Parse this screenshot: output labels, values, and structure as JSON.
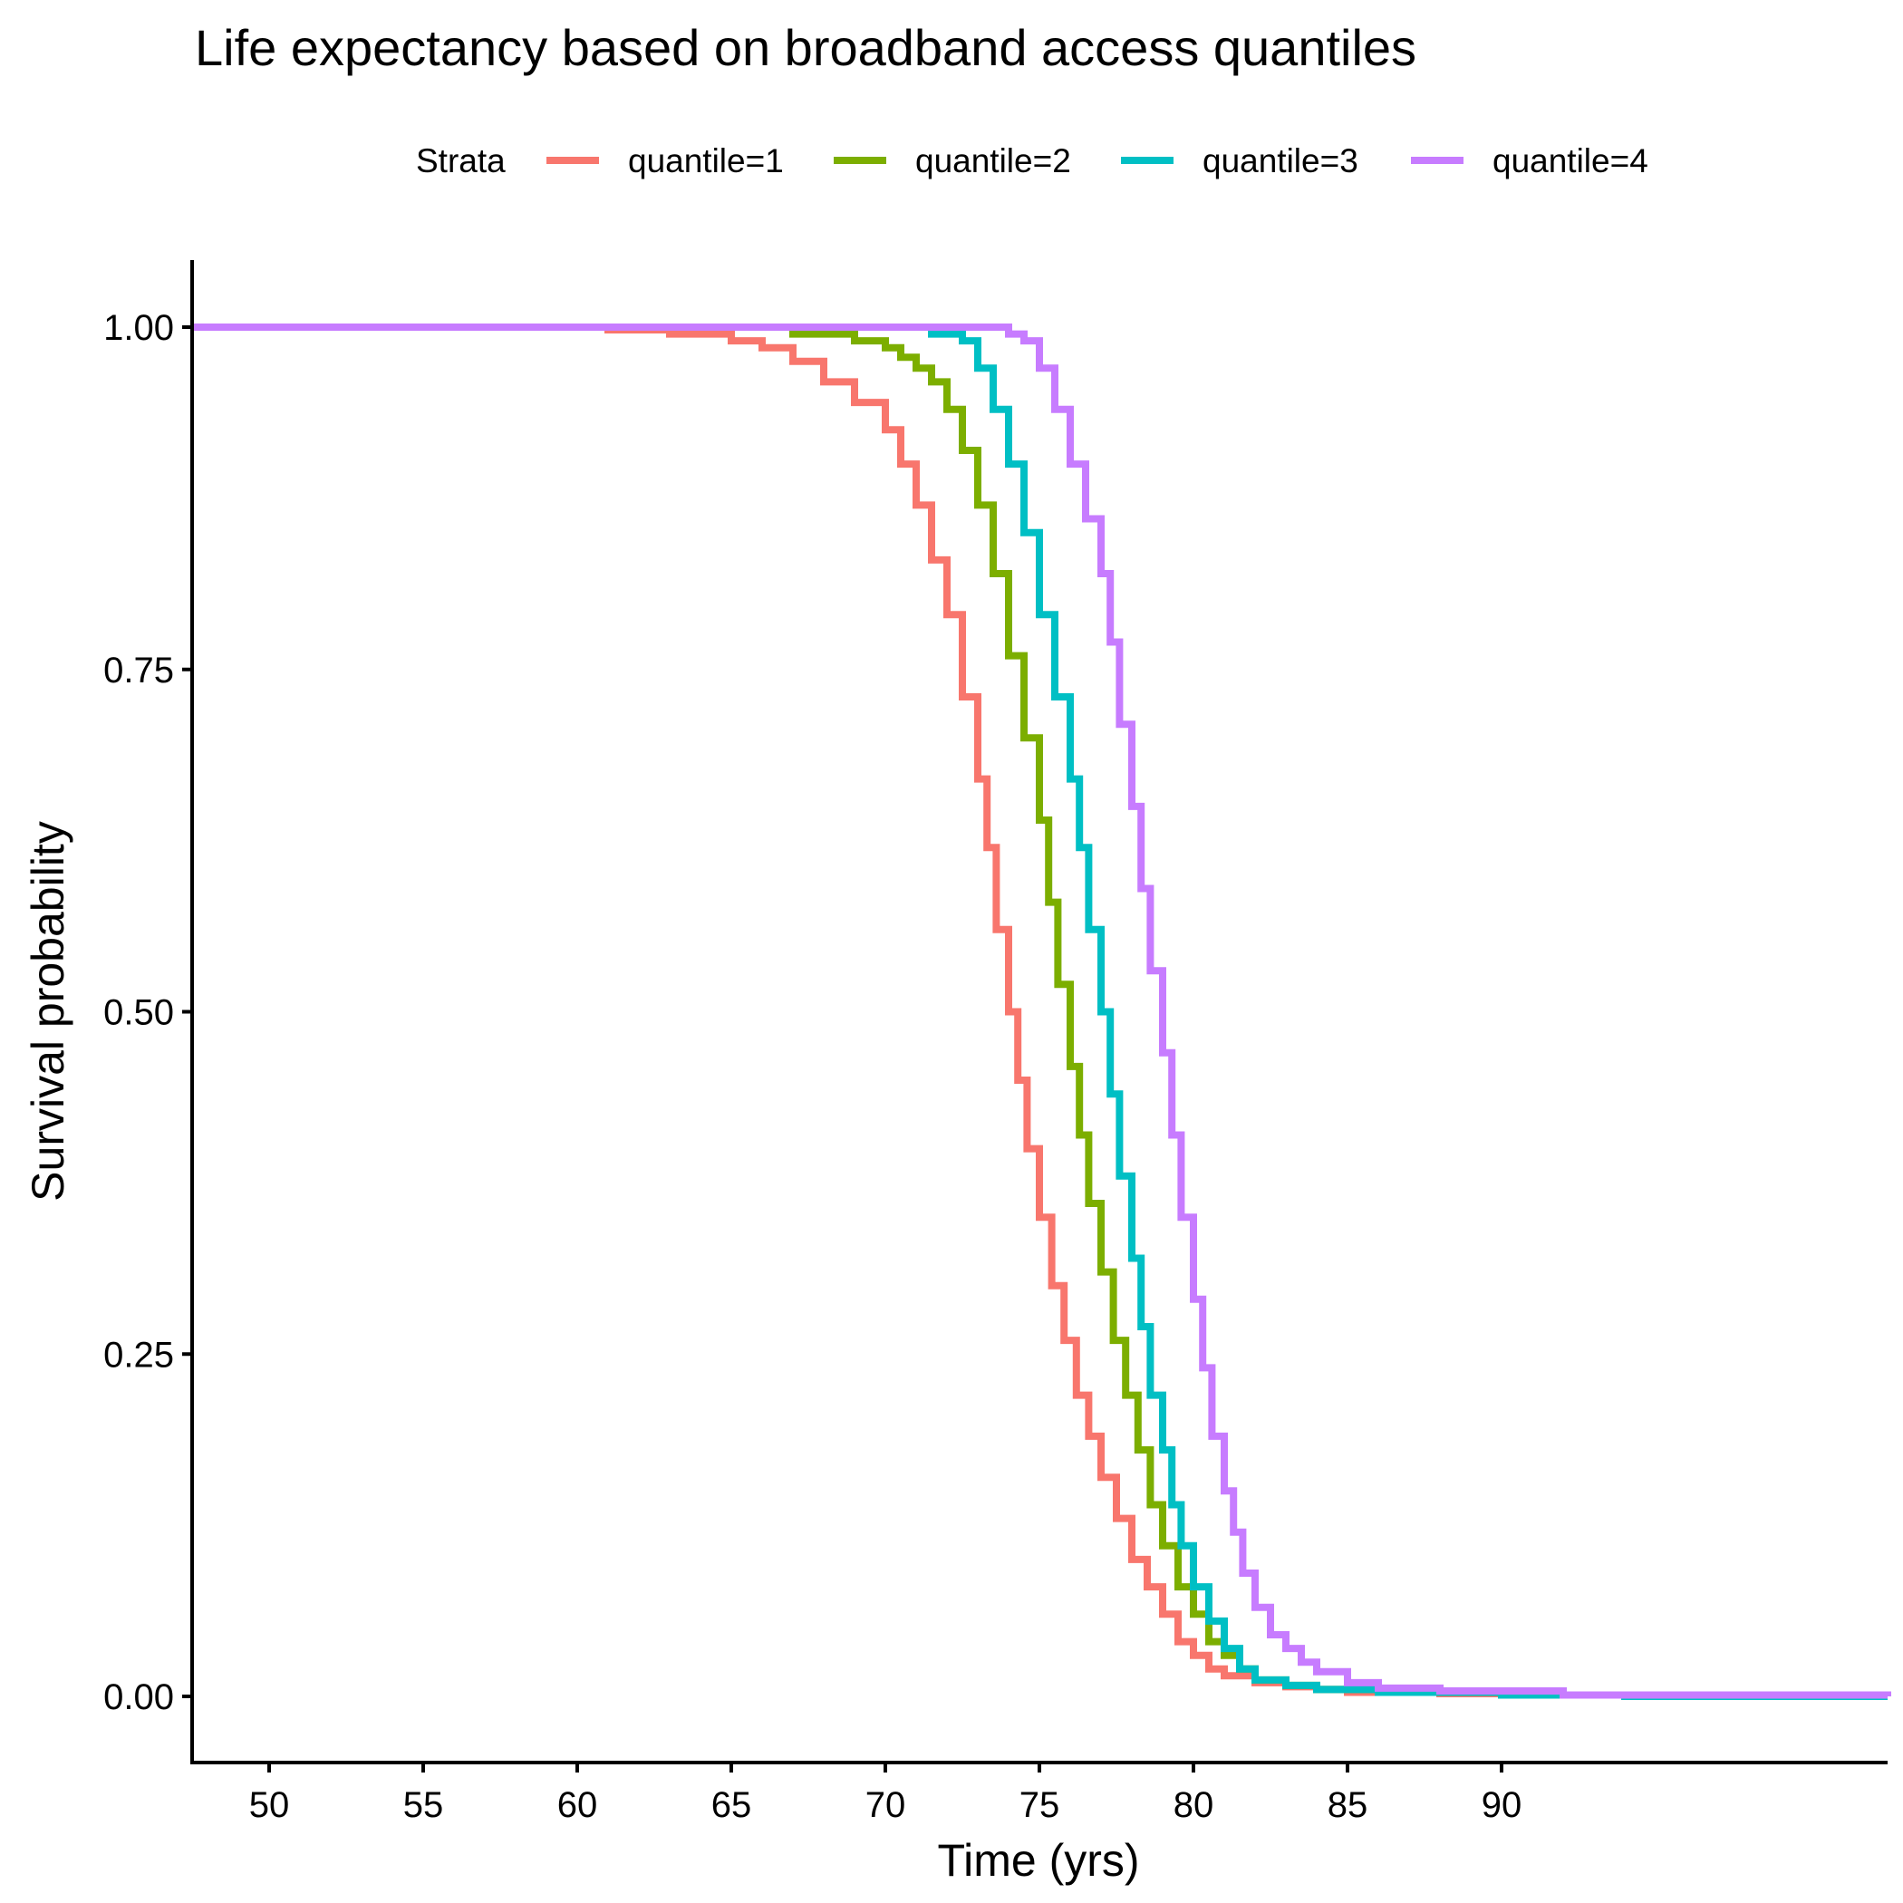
{
  "chart_data": {
    "type": "line",
    "step": true,
    "title": "Life expectancy based on broadband access quantiles",
    "xlabel": "Time (yrs)",
    "ylabel": "Survival probability",
    "xlim": [
      47.5,
      105
    ],
    "ylim": [
      -0.05,
      1.05
    ],
    "xticks": [
      50,
      55,
      60,
      65,
      70,
      75,
      80,
      85,
      90
    ],
    "yticks": [
      0,
      0.25,
      0.5,
      0.75,
      1.0
    ],
    "ytick_labels": [
      "0.00",
      "0.25",
      "0.50",
      "0.75",
      "1.00"
    ],
    "grid": false,
    "legend": {
      "title": "Strata",
      "position": "top"
    },
    "series": [
      {
        "name": "quantile=1",
        "color": "#F8766D",
        "x": [
          47.5,
          61,
          63,
          65,
          66,
          67,
          68,
          69,
          70,
          70.5,
          71,
          71.5,
          72,
          72.5,
          73,
          73.3,
          73.6,
          74,
          74.3,
          74.6,
          75,
          75.4,
          75.8,
          76.2,
          76.6,
          77,
          77.5,
          78,
          78.5,
          79,
          79.5,
          80,
          80.5,
          81,
          82,
          83,
          84,
          85,
          88,
          92,
          105
        ],
        "y": [
          1.0,
          0.998,
          0.995,
          0.99,
          0.985,
          0.975,
          0.96,
          0.945,
          0.925,
          0.9,
          0.87,
          0.83,
          0.79,
          0.73,
          0.67,
          0.62,
          0.56,
          0.5,
          0.45,
          0.4,
          0.35,
          0.3,
          0.26,
          0.22,
          0.19,
          0.16,
          0.13,
          0.1,
          0.08,
          0.06,
          0.04,
          0.03,
          0.02,
          0.015,
          0.01,
          0.007,
          0.005,
          0.003,
          0.002,
          0.001,
          0.0
        ]
      },
      {
        "name": "quantile=2",
        "color": "#7CAE00",
        "x": [
          47.5,
          67,
          69,
          70,
          70.5,
          71,
          71.5,
          72,
          72.5,
          73,
          73.5,
          74,
          74.5,
          75,
          75.3,
          75.6,
          76,
          76.3,
          76.6,
          77,
          77.4,
          77.8,
          78.2,
          78.6,
          79,
          79.5,
          80,
          80.5,
          81,
          81.5,
          82,
          83,
          84,
          86,
          90,
          105
        ],
        "y": [
          1.0,
          0.995,
          0.99,
          0.985,
          0.978,
          0.97,
          0.96,
          0.94,
          0.91,
          0.87,
          0.82,
          0.76,
          0.7,
          0.64,
          0.58,
          0.52,
          0.46,
          0.41,
          0.36,
          0.31,
          0.26,
          0.22,
          0.18,
          0.14,
          0.11,
          0.08,
          0.06,
          0.04,
          0.03,
          0.02,
          0.012,
          0.008,
          0.005,
          0.003,
          0.001,
          0.0
        ]
      },
      {
        "name": "quantile=3",
        "color": "#00BFC4",
        "x": [
          47.5,
          71.5,
          72.5,
          73,
          73.5,
          74,
          74.5,
          75,
          75.5,
          76,
          76.3,
          76.6,
          77,
          77.3,
          77.6,
          78,
          78.3,
          78.6,
          79,
          79.3,
          79.6,
          80,
          80.5,
          81,
          81.5,
          82,
          83,
          84,
          86,
          90,
          94,
          105
        ],
        "y": [
          1.0,
          0.995,
          0.99,
          0.97,
          0.94,
          0.9,
          0.85,
          0.79,
          0.73,
          0.67,
          0.62,
          0.56,
          0.5,
          0.44,
          0.38,
          0.32,
          0.27,
          0.22,
          0.18,
          0.14,
          0.11,
          0.08,
          0.055,
          0.035,
          0.02,
          0.012,
          0.008,
          0.005,
          0.003,
          0.001,
          0.0,
          0.0
        ]
      },
      {
        "name": "quantile=4",
        "color": "#C77CFF",
        "x": [
          47.5,
          74,
          74.5,
          75,
          75.5,
          76,
          76.5,
          77,
          77.3,
          77.6,
          78,
          78.3,
          78.6,
          79,
          79.3,
          79.6,
          80,
          80.3,
          80.6,
          81,
          81.3,
          81.6,
          82,
          82.5,
          83,
          83.5,
          84,
          85,
          86,
          88,
          92,
          105
        ],
        "y": [
          1.0,
          0.995,
          0.99,
          0.97,
          0.94,
          0.9,
          0.86,
          0.82,
          0.77,
          0.71,
          0.65,
          0.59,
          0.53,
          0.47,
          0.41,
          0.35,
          0.29,
          0.24,
          0.19,
          0.15,
          0.12,
          0.09,
          0.065,
          0.045,
          0.035,
          0.025,
          0.018,
          0.01,
          0.006,
          0.004,
          0.001,
          0.0
        ]
      }
    ]
  }
}
